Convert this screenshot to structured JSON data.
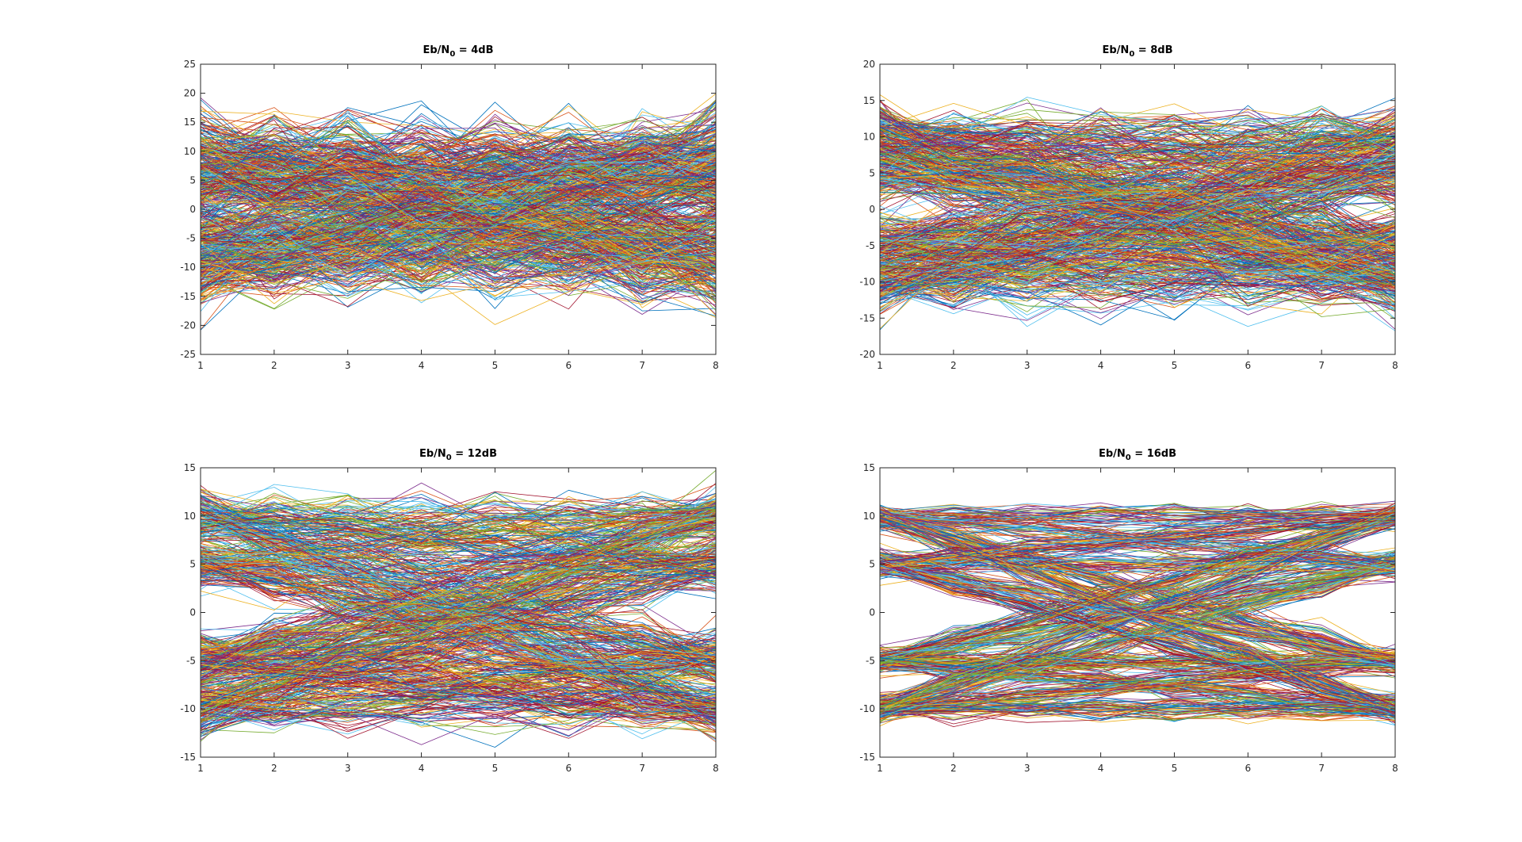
{
  "chart_data": [
    {
      "type": "line",
      "title": "Eb/N0 = 4dB",
      "title_parts": {
        "prefix": "Eb/N",
        "subscript": "0",
        "suffix": " = 4dB"
      },
      "x": [
        1,
        2,
        3,
        4,
        5,
        6,
        7,
        8
      ],
      "xlim": [
        1,
        8
      ],
      "ylim": [
        -25,
        25
      ],
      "xticks": [
        "1",
        "2",
        "3",
        "4",
        "5",
        "6",
        "7",
        "8"
      ],
      "yticks": [
        "-25",
        "-20",
        "-15",
        "-10",
        "-5",
        "0",
        "5",
        "10",
        "15",
        "20",
        "25"
      ],
      "ytick_values": [
        -25,
        -20,
        -15,
        -10,
        -5,
        0,
        5,
        10,
        15,
        20,
        25
      ],
      "signal_levels": [
        -10,
        -5,
        5,
        10
      ],
      "noise_spread": 6.5,
      "trace_count": 700,
      "grid": false
    },
    {
      "type": "line",
      "title": "Eb/N0 = 8dB",
      "title_parts": {
        "prefix": "Eb/N",
        "subscript": "0",
        "suffix": " = 8dB"
      },
      "x": [
        1,
        2,
        3,
        4,
        5,
        6,
        7,
        8
      ],
      "xlim": [
        1,
        8
      ],
      "ylim": [
        -20,
        20
      ],
      "xticks": [
        "1",
        "2",
        "3",
        "4",
        "5",
        "6",
        "7",
        "8"
      ],
      "yticks": [
        "-20",
        "-15",
        "-10",
        "-5",
        "0",
        "5",
        "10",
        "15",
        "20"
      ],
      "ytick_values": [
        -20,
        -15,
        -10,
        -5,
        0,
        5,
        10,
        15,
        20
      ],
      "signal_levels": [
        -10,
        -5,
        5,
        10
      ],
      "noise_spread": 4.0,
      "trace_count": 700,
      "grid": false
    },
    {
      "type": "line",
      "title": "Eb/N0 = 12dB",
      "title_parts": {
        "prefix": "Eb/N",
        "subscript": "0",
        "suffix": " = 12dB"
      },
      "x": [
        1,
        2,
        3,
        4,
        5,
        6,
        7,
        8
      ],
      "xlim": [
        1,
        8
      ],
      "ylim": [
        -15,
        15
      ],
      "xticks": [
        "1",
        "2",
        "3",
        "4",
        "5",
        "6",
        "7",
        "8"
      ],
      "yticks": [
        "-15",
        "-10",
        "-5",
        "0",
        "5",
        "10",
        "15"
      ],
      "ytick_values": [
        -15,
        -10,
        -5,
        0,
        5,
        10,
        15
      ],
      "signal_levels": [
        -10,
        -5,
        5,
        10
      ],
      "noise_spread": 2.4,
      "trace_count": 700,
      "grid": false
    },
    {
      "type": "line",
      "title": "Eb/N0 = 16dB",
      "title_parts": {
        "prefix": "Eb/N",
        "subscript": "0",
        "suffix": " = 16dB"
      },
      "x": [
        1,
        2,
        3,
        4,
        5,
        6,
        7,
        8
      ],
      "xlim": [
        1,
        8
      ],
      "ylim": [
        -15,
        15
      ],
      "xticks": [
        "1",
        "2",
        "3",
        "4",
        "5",
        "6",
        "7",
        "8"
      ],
      "yticks": [
        "-15",
        "-10",
        "-5",
        "0",
        "5",
        "10",
        "15"
      ],
      "ytick_values": [
        -15,
        -10,
        -5,
        0,
        5,
        10,
        15
      ],
      "signal_levels": [
        -10,
        -5,
        5,
        10
      ],
      "noise_spread": 1.2,
      "trace_count": 700,
      "grid": false
    }
  ],
  "colors": {
    "series_cycle": [
      "#0072BD",
      "#D95319",
      "#EDB120",
      "#7E2F8E",
      "#77AC30",
      "#4DBEEE",
      "#A2142F"
    ],
    "axes": "#262626",
    "background": "#ffffff"
  }
}
